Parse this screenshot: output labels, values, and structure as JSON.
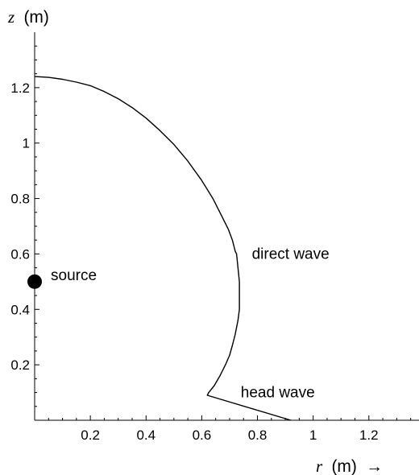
{
  "chart_data": {
    "type": "line",
    "xlabel": {
      "var": "r",
      "unit": "(m)",
      "arrow": "→"
    },
    "ylabel": {
      "var": "z",
      "unit": "(m)"
    },
    "xlim": [
      0,
      1.38
    ],
    "ylim": [
      0,
      1.4
    ],
    "xticks": [
      {
        "v": 0.2,
        "label": "0.2"
      },
      {
        "v": 0.4,
        "label": "0.4"
      },
      {
        "v": 0.6,
        "label": "0.6"
      },
      {
        "v": 0.8,
        "label": "0.8"
      },
      {
        "v": 1.0,
        "label": "1"
      },
      {
        "v": 1.2,
        "label": "1.2"
      }
    ],
    "yticks": [
      {
        "v": 0.2,
        "label": "0.2"
      },
      {
        "v": 0.4,
        "label": "0.4"
      },
      {
        "v": 0.6,
        "label": "0.6"
      },
      {
        "v": 0.8,
        "label": "0.8"
      },
      {
        "v": 1.0,
        "label": "1"
      },
      {
        "v": 1.2,
        "label": "1.2"
      }
    ],
    "grid": false,
    "wavefront": {
      "color": "#000000",
      "points": [
        [
          0.0,
          1.24
        ],
        [
          0.05,
          1.237
        ],
        [
          0.1,
          1.23
        ],
        [
          0.15,
          1.22
        ],
        [
          0.2,
          1.207
        ],
        [
          0.25,
          1.186
        ],
        [
          0.3,
          1.16
        ],
        [
          0.35,
          1.128
        ],
        [
          0.4,
          1.09
        ],
        [
          0.45,
          1.045
        ],
        [
          0.5,
          0.995
        ],
        [
          0.55,
          0.935
        ],
        [
          0.6,
          0.865
        ],
        [
          0.64,
          0.8
        ],
        [
          0.67,
          0.74
        ],
        [
          0.695,
          0.69
        ],
        [
          0.71,
          0.65
        ],
        [
          0.72,
          0.61
        ],
        [
          0.725,
          0.6
        ],
        [
          0.735,
          0.5
        ],
        [
          0.735,
          0.4
        ],
        [
          0.73,
          0.36
        ],
        [
          0.72,
          0.31
        ],
        [
          0.71,
          0.27
        ],
        [
          0.7,
          0.235
        ],
        [
          0.685,
          0.2
        ],
        [
          0.665,
          0.16
        ],
        [
          0.645,
          0.125
        ],
        [
          0.625,
          0.1
        ],
        [
          0.62,
          0.09
        ],
        [
          0.92,
          0.0
        ]
      ]
    },
    "source": {
      "r": 0.0,
      "z": 0.5,
      "label": "source"
    },
    "annotations": [
      {
        "text": "direct wave",
        "r": 0.78,
        "z": 0.6
      },
      {
        "text": "head wave",
        "r": 0.74,
        "z": 0.1
      }
    ]
  }
}
